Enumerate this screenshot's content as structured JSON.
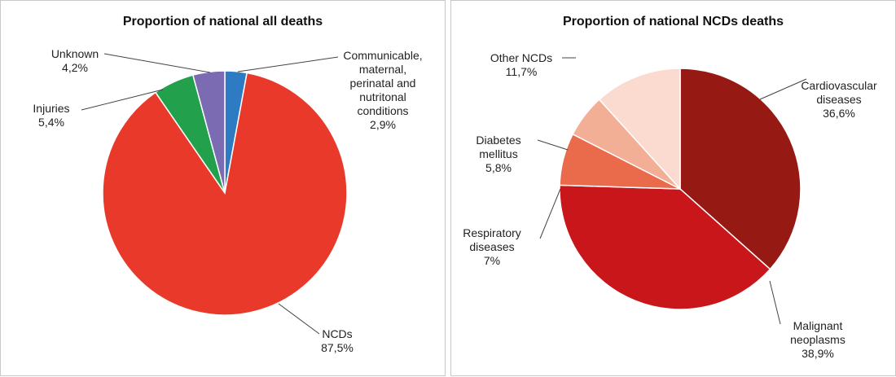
{
  "chart_data": [
    {
      "type": "pie",
      "title": "Proportion of national all deaths",
      "categories": [
        "Communicable, maternal, perinatal and nutritonal conditions",
        "NCDs",
        "Injuries",
        "Unknown"
      ],
      "values": [
        2.9,
        87.5,
        5.4,
        4.2
      ],
      "value_labels": [
        "2,9%",
        "87,5%",
        "5,4%",
        "4,2%"
      ],
      "colors": [
        "#2e7bc4",
        "#e8392a",
        "#23a04c",
        "#7a6bb3"
      ]
    },
    {
      "type": "pie",
      "title": "Proportion of national NCDs deaths",
      "categories": [
        "Cardiovascular diseases",
        "Malignant neoplasms",
        "Respiratory diseases",
        "Diabetes mellitus",
        "Other NCDs"
      ],
      "values": [
        36.6,
        38.9,
        7,
        5.8,
        11.7
      ],
      "value_labels": [
        "36,6%",
        "38,9%",
        "7%",
        "5,8%",
        "11,7%"
      ],
      "colors": [
        "#971913",
        "#c8161b",
        "#ea6a4c",
        "#f3ae96",
        "#fbdbd0"
      ]
    }
  ]
}
